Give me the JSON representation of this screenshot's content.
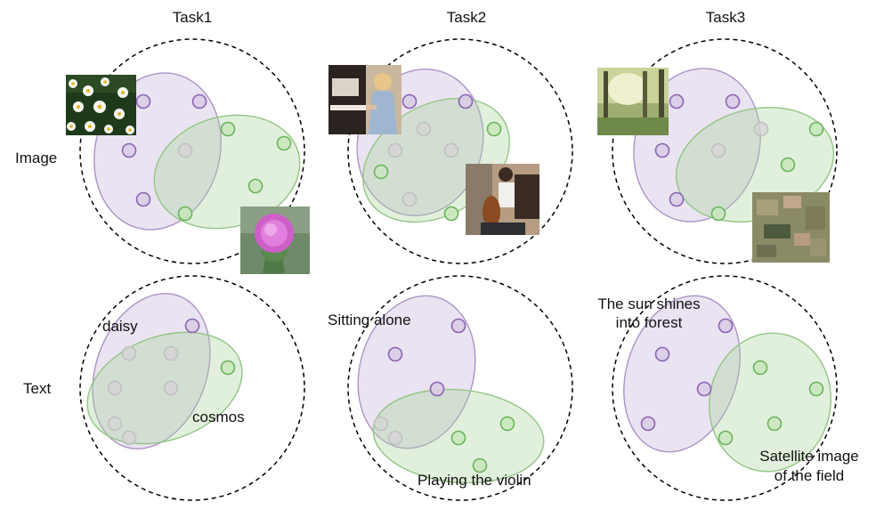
{
  "tasks": [
    {
      "title": "Task1"
    },
    {
      "title": "Task2"
    },
    {
      "title": "Task3"
    }
  ],
  "rows": {
    "image": "Image",
    "text": "Text"
  },
  "captions": {
    "t1_purple": "daisy",
    "t1_green": "cosmos",
    "t2_purple": "Sitting alone",
    "t2_green": "Playing the violin",
    "t3_purple_1": "The sun shines",
    "t3_purple_2": "into forest",
    "t3_green_1": "Satellite image",
    "t3_green_2": "of the field"
  },
  "colors": {
    "purple_cluster": "#b9a3cf",
    "green_cluster": "#a9d39a",
    "purple_dot": "#8a63b4",
    "green_dot": "#6ab35c"
  }
}
